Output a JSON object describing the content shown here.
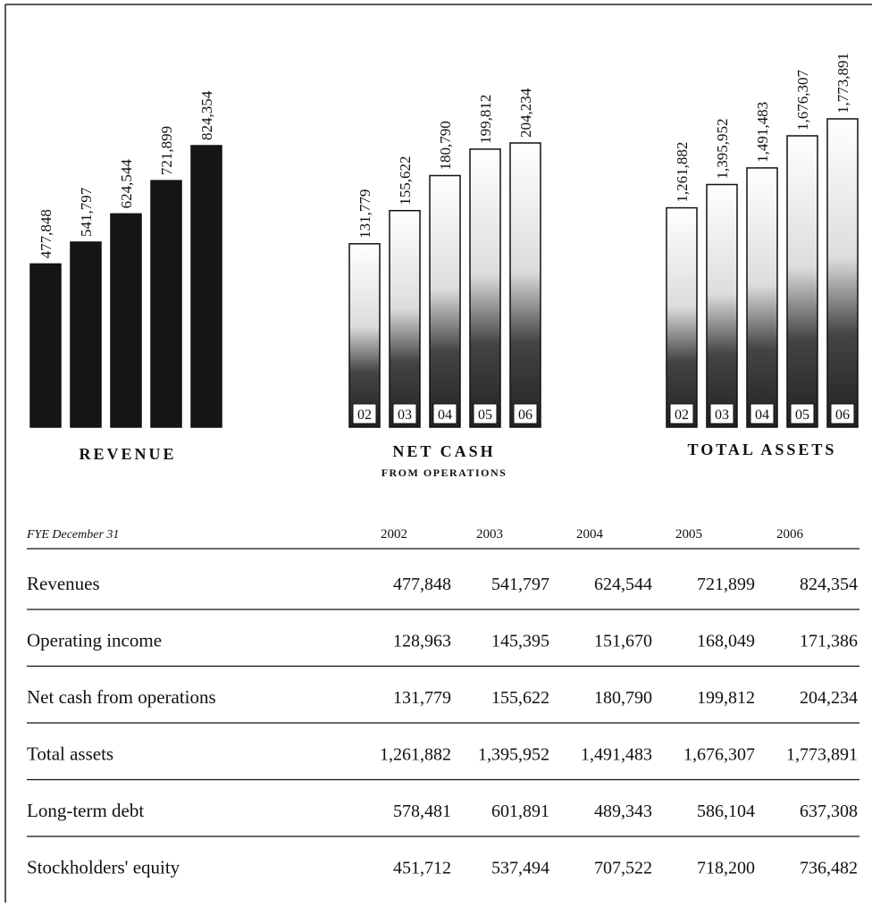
{
  "chart_data": [
    {
      "type": "bar",
      "title": "REVENUE",
      "values": [
        477848,
        541797,
        624544,
        721899,
        824354
      ],
      "value_labels": [
        "477,848",
        "541,797",
        "624,544",
        "721,899",
        "824,354"
      ]
    },
    {
      "type": "bar",
      "title": "NET CASH",
      "subtitle": "FROM OPERATIONS",
      "categories": [
        "02",
        "03",
        "04",
        "05",
        "06"
      ],
      "values": [
        131779,
        155622,
        180790,
        199812,
        204234
      ],
      "value_labels": [
        "131,779",
        "155,622",
        "180,790",
        "199,812",
        "204,234"
      ]
    },
    {
      "type": "bar",
      "title": "TOTAL ASSETS",
      "categories": [
        "02",
        "03",
        "04",
        "05",
        "06"
      ],
      "values": [
        1261882,
        1395952,
        1491483,
        1676307,
        1773891
      ],
      "value_labels": [
        "1,261,882",
        "1,395,952",
        "1,491,483",
        "1,676,307",
        "1,773,891"
      ]
    }
  ],
  "table": {
    "header": [
      "FYE December 31",
      "2002",
      "2003",
      "2004",
      "2005",
      "2006"
    ],
    "rows": [
      [
        "Revenues",
        "477,848",
        "541,797",
        "624,544",
        "721,899",
        "824,354"
      ],
      [
        "Operating income",
        "128,963",
        "145,395",
        "151,670",
        "168,049",
        "171,386"
      ],
      [
        "Net cash from operations",
        "131,779",
        "155,622",
        "180,790",
        "199,812",
        "204,234"
      ],
      [
        "Total assets",
        "1,261,882",
        "1,395,952",
        "1,491,483",
        "1,676,307",
        "1,773,891"
      ],
      [
        "Long-term debt",
        "578,481",
        "601,891",
        "489,343",
        "586,104",
        "637,308"
      ],
      [
        "Stockholders' equity",
        "451,712",
        "537,494",
        "707,522",
        "718,200",
        "736,482"
      ]
    ]
  }
}
